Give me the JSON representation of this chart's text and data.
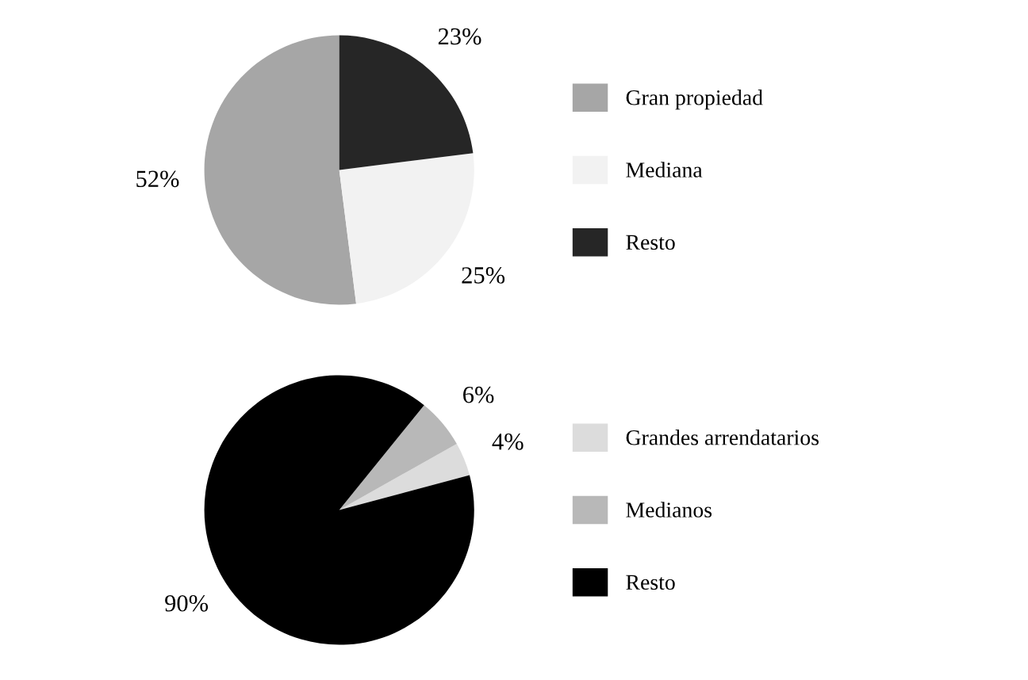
{
  "chart_data": [
    {
      "type": "pie",
      "categories": [
        "Gran propiedad",
        "Mediana",
        "Resto"
      ],
      "values": [
        52,
        25,
        23
      ],
      "colors": [
        "#a6a6a6",
        "#f2f2f2",
        "#262626"
      ],
      "value_labels": [
        "52%",
        "25%",
        "23%"
      ],
      "legend": "right"
    },
    {
      "type": "pie",
      "categories": [
        "Grandes arrendatarios",
        "Medianos",
        "Resto"
      ],
      "values": [
        4,
        6,
        90
      ],
      "colors": [
        "#dcdcdc",
        "#b8b8b8",
        "#000000"
      ],
      "value_labels": [
        "4%",
        "6%",
        "90%"
      ],
      "legend": "right"
    }
  ]
}
